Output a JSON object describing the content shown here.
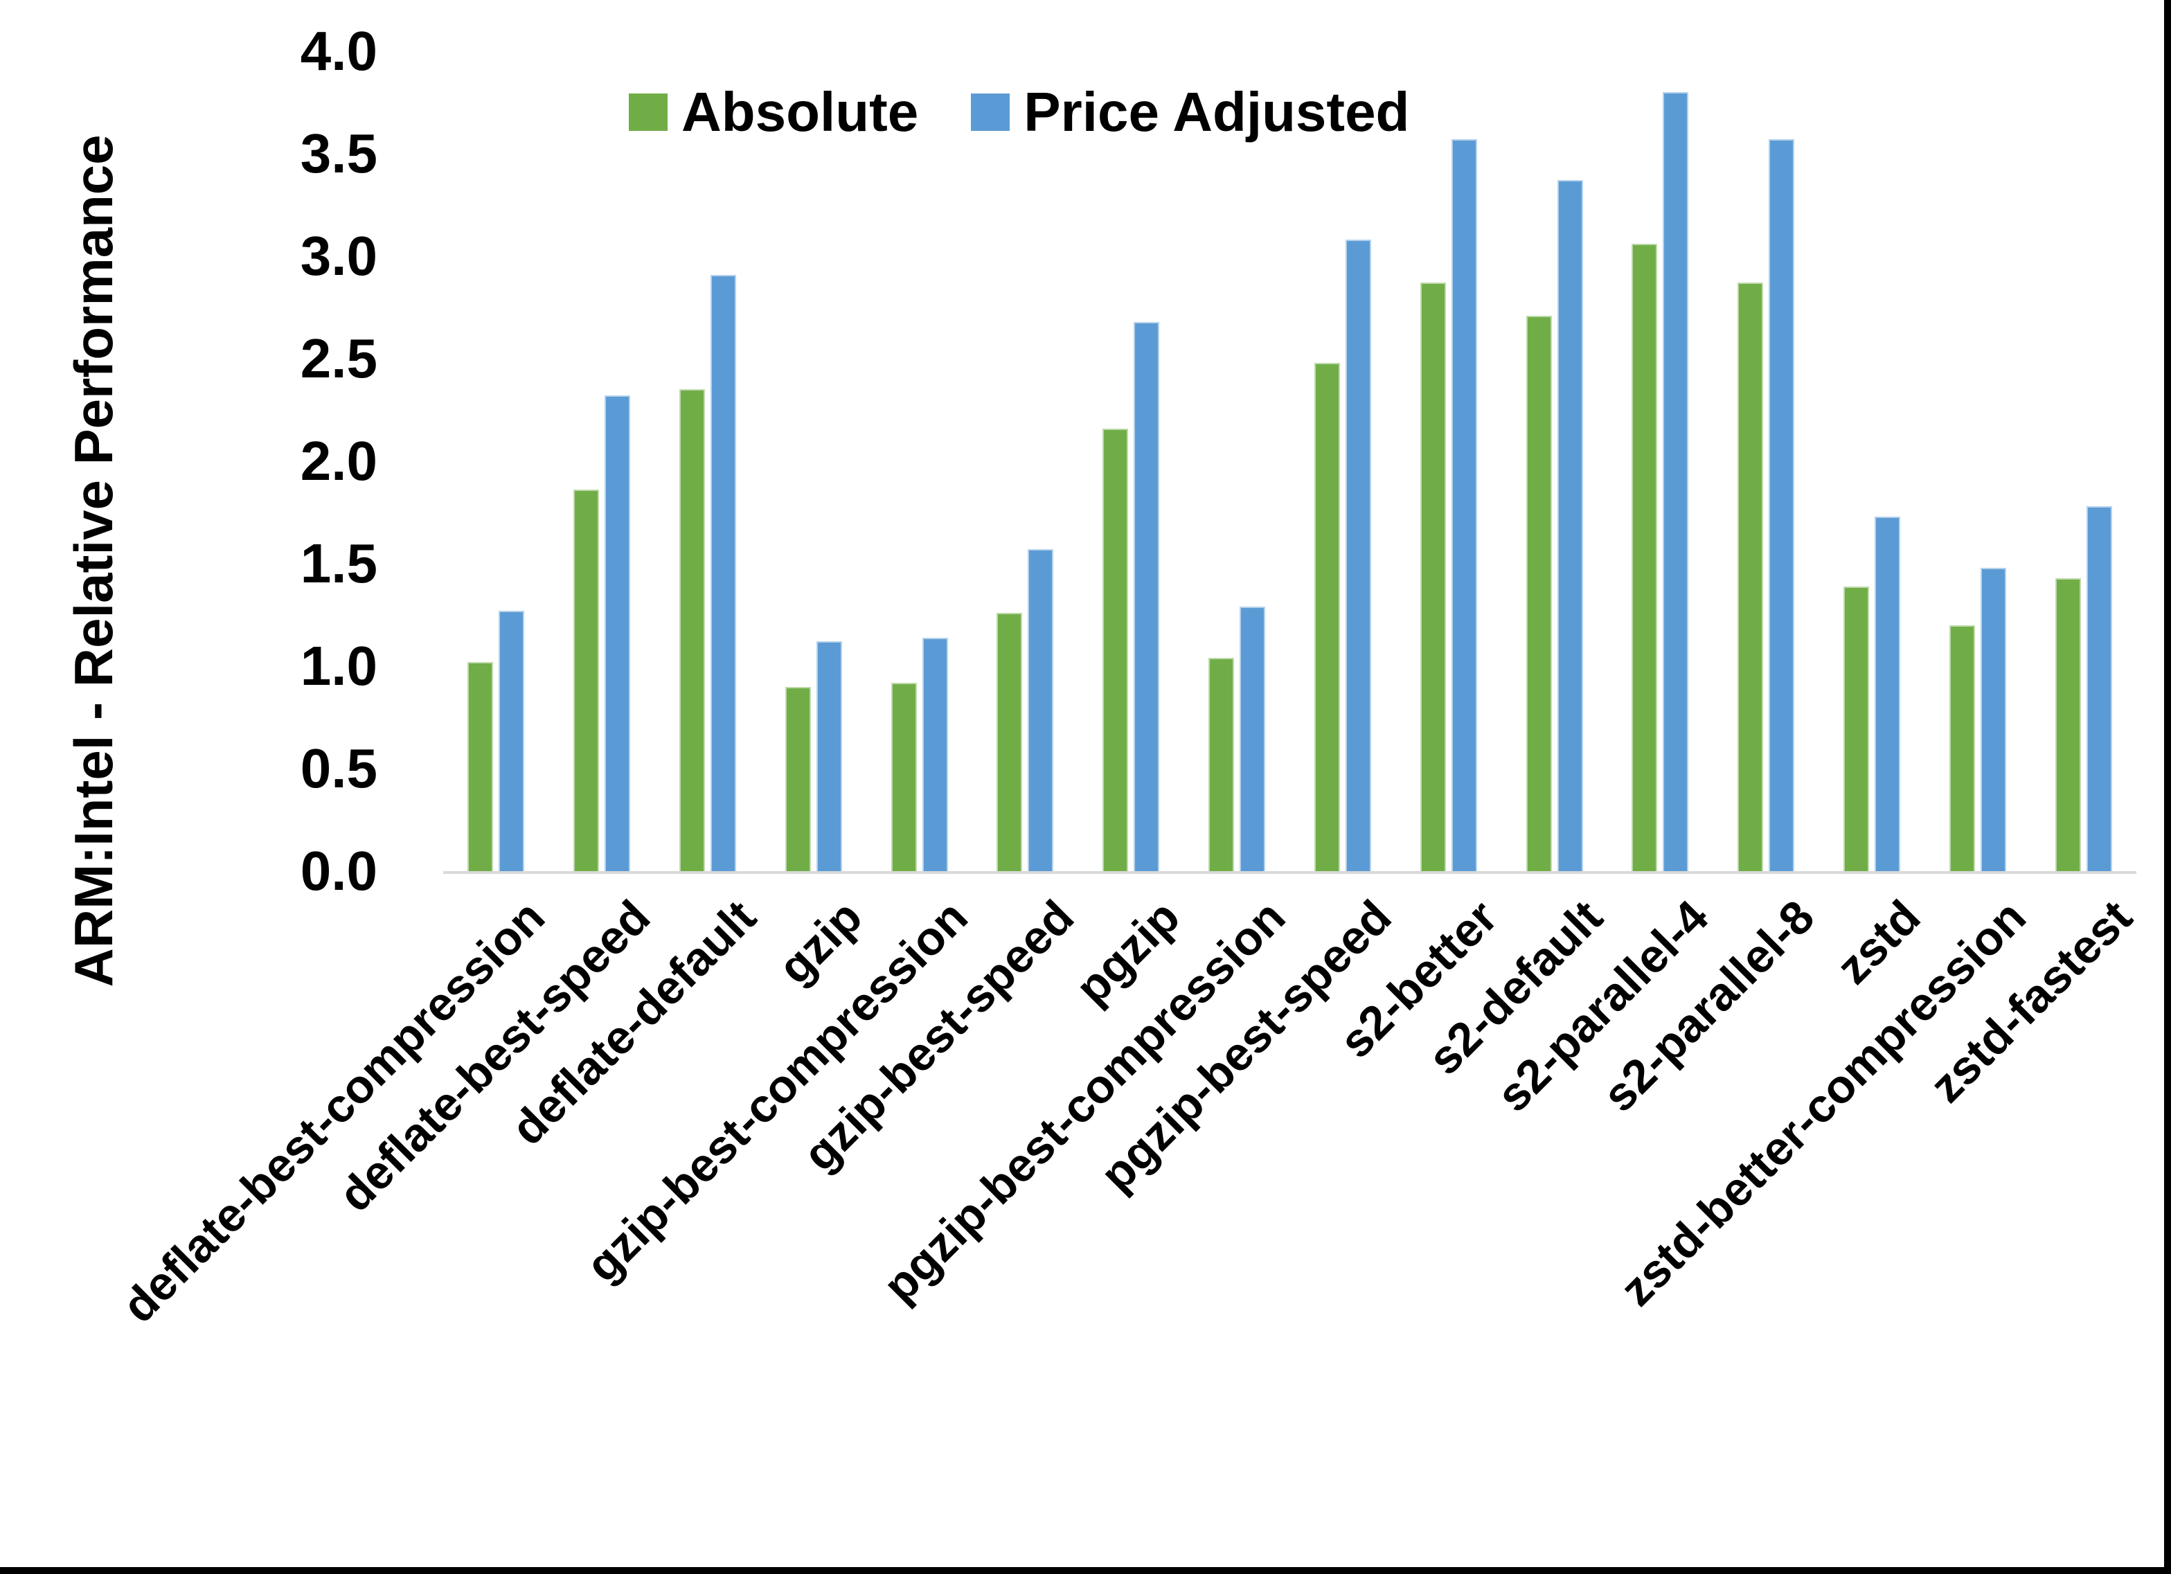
{
  "chart_data": {
    "type": "bar",
    "title": "",
    "xlabel": "",
    "ylabel": "ARM:Intel - Relative Performance",
    "ylim": [
      0.0,
      4.0
    ],
    "ytick_step": 0.5,
    "yticks": [
      "4.0",
      "3.5",
      "3.0",
      "2.5",
      "2.0",
      "1.5",
      "1.0",
      "0.5",
      "0.0"
    ],
    "grid": false,
    "legend_position": "top-center",
    "categories": [
      "deflate-best-compression",
      "deflate-best-speed",
      "deflate-default",
      "gzip",
      "gzip-best-compression",
      "gzip-best-speed",
      "pgzip",
      "pgzip-best-compression",
      "pgzip-best-speed",
      "s2-better",
      "s2-default",
      "s2-parallel-4",
      "s2-parallel-8",
      "zstd",
      "zstd-better-compression",
      "zstd-fastest"
    ],
    "series": [
      {
        "name": "Absolute",
        "color": "#70AD47",
        "values": [
          1.02,
          1.86,
          2.35,
          0.9,
          0.92,
          1.26,
          2.16,
          1.04,
          2.48,
          2.87,
          2.71,
          3.06,
          2.87,
          1.39,
          1.2,
          1.43
        ]
      },
      {
        "name": "Price Adjusted",
        "color": "#5B9BD5",
        "values": [
          1.27,
          2.32,
          2.91,
          1.12,
          1.14,
          1.57,
          2.68,
          1.29,
          3.08,
          3.57,
          3.37,
          3.8,
          3.57,
          1.73,
          1.48,
          1.78
        ]
      }
    ],
    "axis_line_color": "#d9d9d9",
    "frame_border_color": "#000000"
  }
}
